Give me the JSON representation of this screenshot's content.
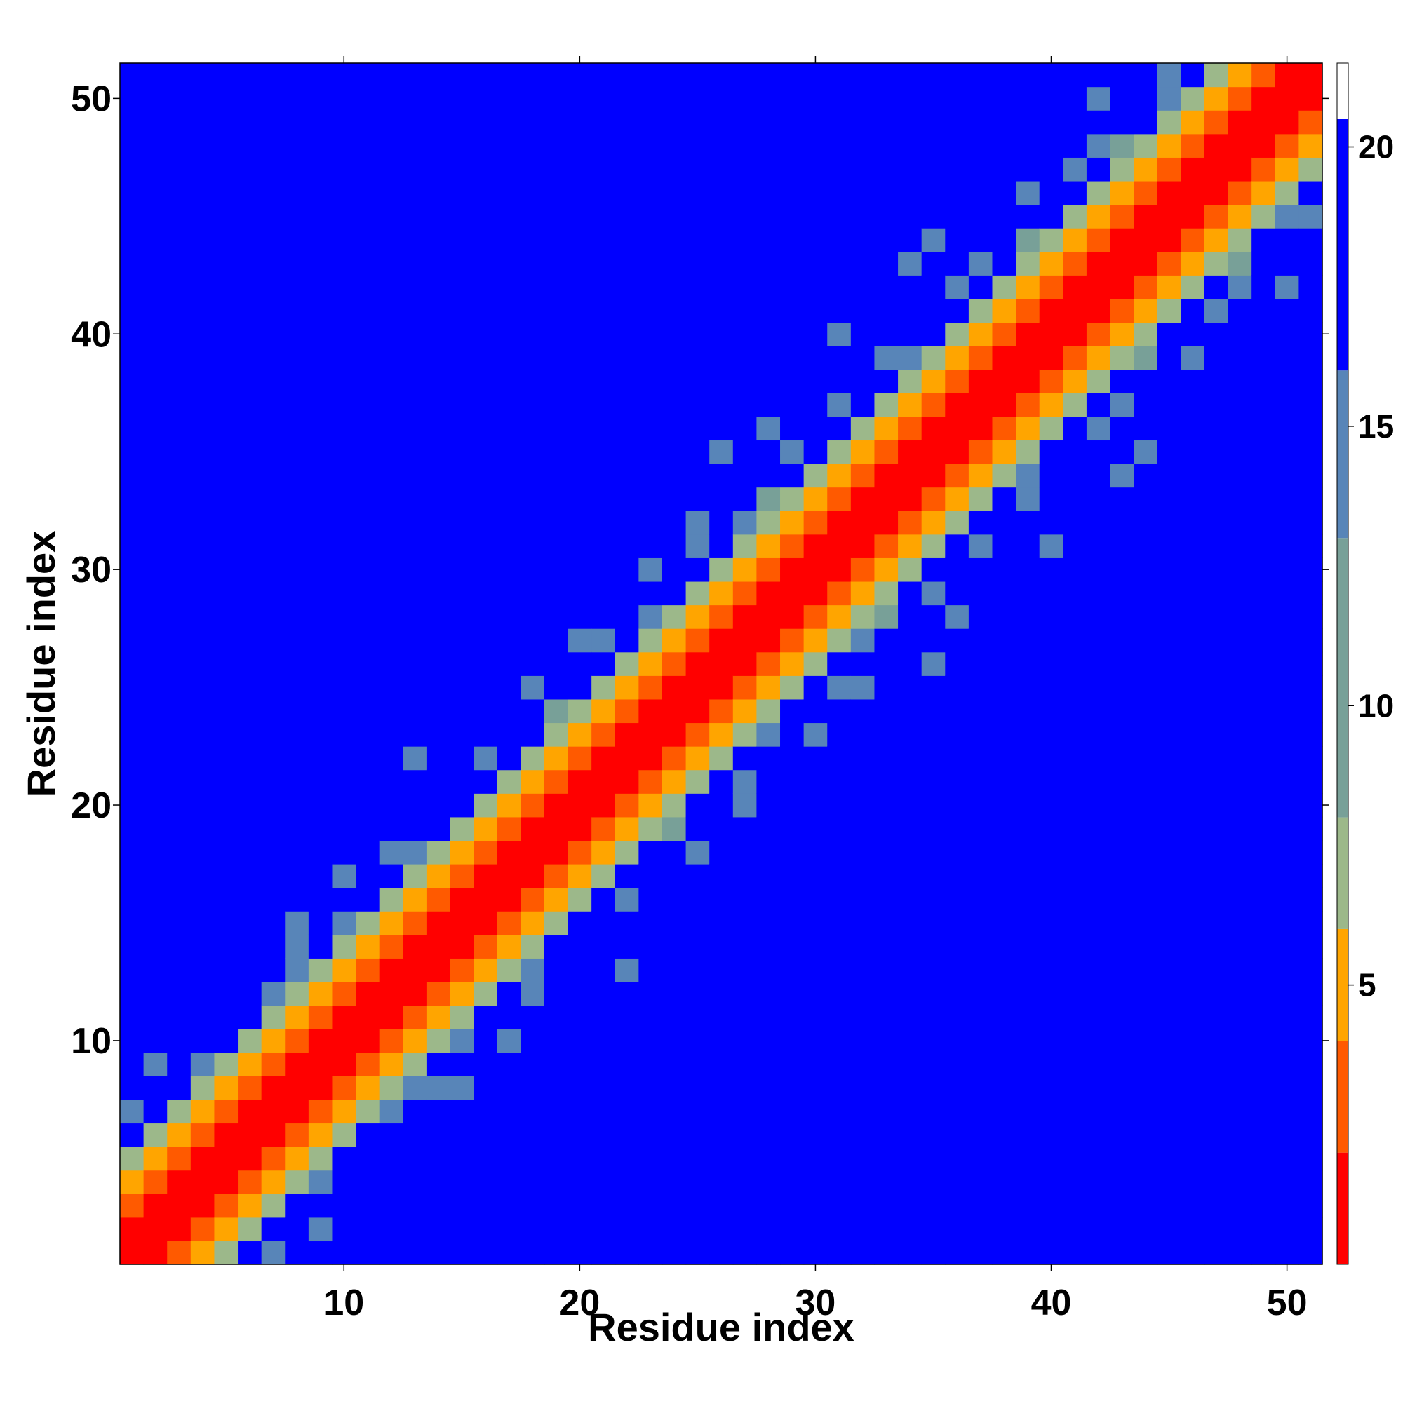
{
  "chart_data": {
    "type": "heatmap",
    "title": "",
    "xlabel": "Residue index",
    "ylabel": "Residue index",
    "x_range": [
      1,
      51
    ],
    "y_range": [
      1,
      51
    ],
    "x_ticks": [
      10,
      20,
      30,
      40,
      50
    ],
    "y_ticks": [
      10,
      20,
      30,
      40,
      50
    ],
    "colorbar": {
      "ticks": [
        5,
        10,
        15,
        20
      ],
      "range": [
        0,
        21.5
      ],
      "colors": [
        "#ff0000",
        "#ff5a00",
        "#ffa500",
        "#9cb88a",
        "#78a098",
        "#5885b8",
        "#0000ff"
      ],
      "thresholds": [
        2,
        4,
        6,
        8,
        13,
        16,
        20.5
      ],
      "colorbar_stops": [
        0,
        2,
        4,
        6,
        8,
        13,
        16,
        20.5
      ]
    },
    "grid": false,
    "legend": "colorbar-right",
    "description": "Symmetric residue-residue distance map; diagonal (i=j) minimum distance (red), helical band near diagonal, blue for distances above 20."
  }
}
